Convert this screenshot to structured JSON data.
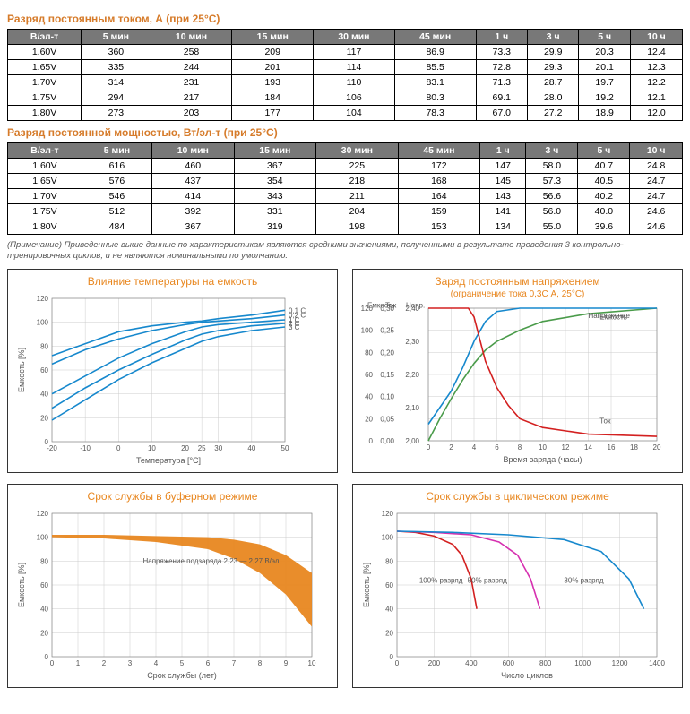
{
  "table1": {
    "title": "Разряд постоянным током, А (при 25°C)",
    "headers": [
      "В/эл-т",
      "5 мин",
      "10 мин",
      "15 мин",
      "30 мин",
      "45 мин",
      "1 ч",
      "3 ч",
      "5 ч",
      "10 ч"
    ],
    "rows": [
      [
        "1.60V",
        "360",
        "258",
        "209",
        "117",
        "86.9",
        "73.3",
        "29.9",
        "20.3",
        "12.4"
      ],
      [
        "1.65V",
        "335",
        "244",
        "201",
        "114",
        "85.5",
        "72.8",
        "29.3",
        "20.1",
        "12.3"
      ],
      [
        "1.70V",
        "314",
        "231",
        "193",
        "110",
        "83.1",
        "71.3",
        "28.7",
        "19.7",
        "12.2"
      ],
      [
        "1.75V",
        "294",
        "217",
        "184",
        "106",
        "80.3",
        "69.1",
        "28.0",
        "19.2",
        "12.1"
      ],
      [
        "1.80V",
        "273",
        "203",
        "177",
        "104",
        "78.3",
        "67.0",
        "27.2",
        "18.9",
        "12.0"
      ]
    ]
  },
  "table2": {
    "title": "Разряд постоянной мощностью, Вт/эл-т (при 25°C)",
    "headers": [
      "В/эл-т",
      "5 мин",
      "10 мин",
      "15 мин",
      "30 мин",
      "45 мин",
      "1 ч",
      "3 ч",
      "5 ч",
      "10 ч"
    ],
    "rows": [
      [
        "1.60V",
        "616",
        "460",
        "367",
        "225",
        "172",
        "147",
        "58.0",
        "40.7",
        "24.8"
      ],
      [
        "1.65V",
        "576",
        "437",
        "354",
        "218",
        "168",
        "145",
        "57.3",
        "40.5",
        "24.7"
      ],
      [
        "1.70V",
        "546",
        "414",
        "343",
        "211",
        "164",
        "143",
        "56.6",
        "40.2",
        "24.7"
      ],
      [
        "1.75V",
        "512",
        "392",
        "331",
        "204",
        "159",
        "141",
        "56.0",
        "40.0",
        "24.6"
      ],
      [
        "1.80V",
        "484",
        "367",
        "319",
        "198",
        "153",
        "134",
        "55.0",
        "39.6",
        "24.6"
      ]
    ]
  },
  "footnote": "(Примечание) Приведенные выше данные по характеристикам являются средними значениями, полученными в результате проведения 3 контрольно-тренировочных циклов, и не являются номинальными по умолчанию.",
  "chart1": {
    "title": "Влияние температуры на емкость",
    "xlabel": "Температура [°C]",
    "ylabel": "Емкость [%]",
    "x_ticks": [
      -20,
      -10,
      0,
      10,
      20,
      25,
      30,
      40,
      50
    ],
    "y_ticks": [
      0,
      20,
      40,
      60,
      80,
      100,
      120
    ],
    "xlim": [
      -20,
      50
    ],
    "ylim": [
      0,
      120
    ],
    "series": [
      {
        "label": "0,1 C",
        "color": "#1688cd",
        "pts": [
          [
            -20,
            72
          ],
          [
            -10,
            82
          ],
          [
            0,
            92
          ],
          [
            10,
            97
          ],
          [
            20,
            100
          ],
          [
            25,
            101
          ],
          [
            30,
            103
          ],
          [
            40,
            106
          ],
          [
            50,
            110
          ]
        ]
      },
      {
        "label": "0,2 C",
        "color": "#1688cd",
        "pts": [
          [
            -20,
            65
          ],
          [
            -10,
            77
          ],
          [
            0,
            86
          ],
          [
            10,
            93
          ],
          [
            20,
            98
          ],
          [
            25,
            100
          ],
          [
            30,
            101
          ],
          [
            40,
            103
          ],
          [
            50,
            106
          ]
        ]
      },
      {
        "label": "1 C",
        "color": "#1688cd",
        "pts": [
          [
            -20,
            40
          ],
          [
            -10,
            55
          ],
          [
            0,
            70
          ],
          [
            10,
            82
          ],
          [
            20,
            92
          ],
          [
            25,
            96
          ],
          [
            30,
            98
          ],
          [
            40,
            100
          ],
          [
            50,
            102
          ]
        ]
      },
      {
        "label": "2 C",
        "color": "#1688cd",
        "pts": [
          [
            -20,
            28
          ],
          [
            -10,
            45
          ],
          [
            0,
            60
          ],
          [
            10,
            73
          ],
          [
            20,
            85
          ],
          [
            25,
            90
          ],
          [
            30,
            93
          ],
          [
            40,
            97
          ],
          [
            50,
            99
          ]
        ]
      },
      {
        "label": "3 C",
        "color": "#1688cd",
        "pts": [
          [
            -20,
            18
          ],
          [
            -10,
            35
          ],
          [
            0,
            52
          ],
          [
            10,
            66
          ],
          [
            20,
            78
          ],
          [
            25,
            84
          ],
          [
            30,
            88
          ],
          [
            40,
            93
          ],
          [
            50,
            96
          ]
        ]
      }
    ]
  },
  "chart2": {
    "title": "Заряд постоянным напряжением",
    "subtitle": "(ограничение тока 0,3С А, 25°C)",
    "xlabel": "Время заряда (часы)",
    "y1label": "Емкость\n(%)",
    "y2label": "Ток\n(×СА)",
    "y3label": "Напр.\n(В)",
    "x_ticks": [
      0,
      2,
      4,
      6,
      8,
      10,
      12,
      14,
      16,
      18,
      20
    ],
    "xlim": [
      0,
      20
    ],
    "series": [
      {
        "label": "Емкость",
        "color": "#4a9b4a",
        "map": "cap",
        "pts": [
          [
            0,
            0
          ],
          [
            1,
            20
          ],
          [
            2,
            38
          ],
          [
            3,
            55
          ],
          [
            4,
            70
          ],
          [
            5,
            82
          ],
          [
            6,
            90
          ],
          [
            8,
            100
          ],
          [
            10,
            108
          ],
          [
            14,
            115
          ],
          [
            20,
            120
          ]
        ]
      },
      {
        "label": "Напряжение",
        "color": "#1688cd",
        "map": "volt",
        "pts": [
          [
            0,
            2.05
          ],
          [
            1,
            2.1
          ],
          [
            2,
            2.15
          ],
          [
            3,
            2.22
          ],
          [
            4,
            2.3
          ],
          [
            5,
            2.36
          ],
          [
            6,
            2.39
          ],
          [
            8,
            2.4
          ],
          [
            12,
            2.4
          ],
          [
            20,
            2.4
          ]
        ]
      },
      {
        "label": "Ток",
        "color": "#d32020",
        "map": "cur",
        "pts": [
          [
            0,
            0.3
          ],
          [
            2,
            0.3
          ],
          [
            3.5,
            0.3
          ],
          [
            4,
            0.28
          ],
          [
            5,
            0.18
          ],
          [
            6,
            0.12
          ],
          [
            7,
            0.08
          ],
          [
            8,
            0.05
          ],
          [
            10,
            0.03
          ],
          [
            14,
            0.015
          ],
          [
            20,
            0.01
          ]
        ]
      }
    ],
    "cap_ticks": [
      0,
      20,
      40,
      60,
      80,
      100,
      120
    ],
    "cur_ticks": [
      0.0,
      0.05,
      0.1,
      0.15,
      0.2,
      0.25,
      0.3
    ],
    "volt_ticks": [
      2.0,
      2.1,
      2.2,
      2.3,
      2.4
    ]
  },
  "chart3": {
    "title": "Срок службы в буферном режиме",
    "xlabel": "Срок службы (лет)",
    "ylabel": "Емкость [%]",
    "note": "Напряжение подзаряда 2,23 — 2,27 В/эл",
    "x_ticks": [
      0,
      1,
      2,
      3,
      4,
      5,
      6,
      7,
      8,
      9,
      10
    ],
    "y_ticks": [
      0,
      20,
      40,
      60,
      80,
      100,
      120
    ],
    "xlim": [
      0,
      10
    ],
    "ylim": [
      0,
      120
    ],
    "band_color": "#e88720",
    "upper": [
      [
        0,
        102
      ],
      [
        2,
        102
      ],
      [
        4,
        101
      ],
      [
        6,
        100
      ],
      [
        7,
        98
      ],
      [
        8,
        94
      ],
      [
        9,
        85
      ],
      [
        10,
        70
      ]
    ],
    "lower": [
      [
        0,
        100
      ],
      [
        2,
        99
      ],
      [
        4,
        96
      ],
      [
        6,
        90
      ],
      [
        7,
        82
      ],
      [
        8,
        70
      ],
      [
        9,
        52
      ],
      [
        10,
        25
      ]
    ]
  },
  "chart4": {
    "title": "Срок службы в циклическом режиме",
    "xlabel": "Число циклов",
    "ylabel": "Емкость [%]",
    "x_ticks": [
      0,
      200,
      400,
      600,
      800,
      1000,
      1200,
      1400
    ],
    "y_ticks": [
      0,
      20,
      40,
      60,
      80,
      100,
      120
    ],
    "xlim": [
      0,
      1400
    ],
    "ylim": [
      0,
      120
    ],
    "series": [
      {
        "label": "100% разряд",
        "color": "#d32020",
        "pts": [
          [
            0,
            105
          ],
          [
            100,
            104
          ],
          [
            200,
            101
          ],
          [
            300,
            94
          ],
          [
            350,
            85
          ],
          [
            400,
            65
          ],
          [
            430,
            40
          ]
        ]
      },
      {
        "label": "50% разряд",
        "color": "#d630b0",
        "pts": [
          [
            0,
            105
          ],
          [
            200,
            104
          ],
          [
            400,
            102
          ],
          [
            550,
            96
          ],
          [
            650,
            85
          ],
          [
            720,
            65
          ],
          [
            770,
            40
          ]
        ]
      },
      {
        "label": "30% разряд",
        "color": "#1688cd",
        "pts": [
          [
            0,
            105
          ],
          [
            300,
            104
          ],
          [
            600,
            102
          ],
          [
            900,
            98
          ],
          [
            1100,
            88
          ],
          [
            1250,
            65
          ],
          [
            1330,
            40
          ]
        ]
      }
    ]
  }
}
